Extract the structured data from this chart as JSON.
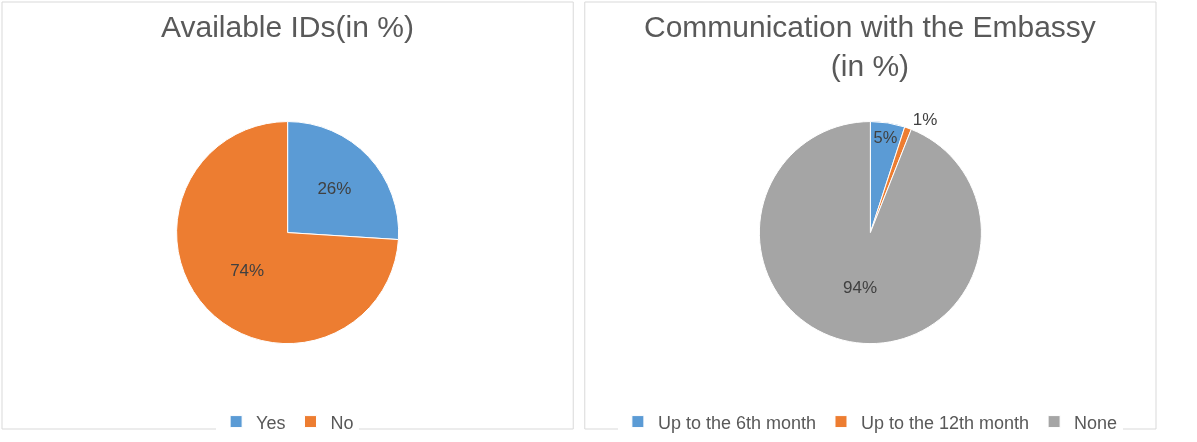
{
  "chart_data": [
    {
      "type": "pie",
      "title": "Available IDs(in %)",
      "categories": [
        "Yes",
        "No"
      ],
      "values": [
        26,
        74
      ],
      "colors": [
        "#5b9bd5",
        "#ed7d31"
      ],
      "value_labels": [
        "26%",
        "74%"
      ],
      "legend": "bottom"
    },
    {
      "type": "pie",
      "title": "Communication with the Embassy (in %)",
      "categories": [
        "Up to the 6th month",
        "Up to the 12th month",
        "None"
      ],
      "values": [
        5,
        1,
        94
      ],
      "colors": [
        "#5b9bd5",
        "#ed7d31",
        "#a5a5a5"
      ],
      "value_labels": [
        "5%",
        "1%",
        "94%"
      ],
      "legend": "bottom"
    }
  ]
}
